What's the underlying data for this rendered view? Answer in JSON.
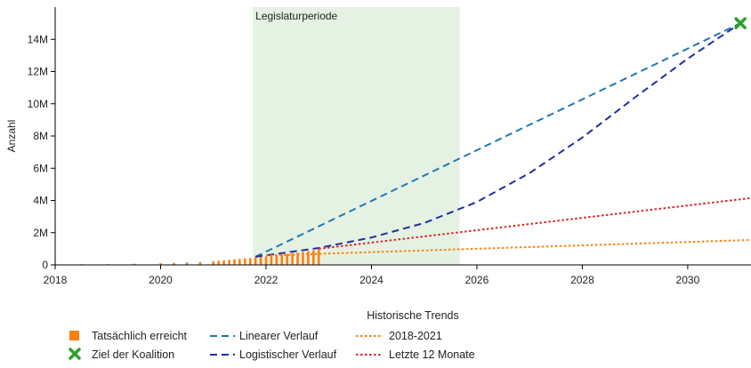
{
  "chart_data": {
    "type": "line",
    "ylabel": "Anzahl",
    "x_ticks": [
      2018,
      2020,
      2022,
      2024,
      2026,
      2028,
      2030
    ],
    "x_range": [
      2018,
      2031.2
    ],
    "y_ticks": [
      0,
      2000000,
      4000000,
      6000000,
      8000000,
      10000000,
      12000000,
      14000000
    ],
    "y_tick_labels": [
      "0",
      "2M",
      "4M",
      "6M",
      "8M",
      "10M",
      "12M",
      "14M"
    ],
    "y_range": [
      0,
      16000000
    ],
    "shaded_region": {
      "label": "Legislaturperiode",
      "x_start": 2021.75,
      "x_end": 2025.67,
      "color": "#e5f2e3"
    },
    "legend_header": "Historische Trends",
    "bars": {
      "name": "Tatsächlich erreicht",
      "color": "#ff7f0e",
      "x": [
        2018.0,
        2018.5,
        2019.0,
        2019.5,
        2020.0,
        2020.25,
        2020.5,
        2020.75,
        2021.0,
        2021.1,
        2021.2,
        2021.3,
        2021.4,
        2021.5,
        2021.6,
        2021.7,
        2021.8,
        2021.9,
        2022.0,
        2022.1,
        2022.2,
        2022.3,
        2022.4,
        2022.5,
        2022.6,
        2022.7,
        2022.8,
        2022.9,
        2023.0
      ],
      "values": [
        30000,
        40000,
        50000,
        70000,
        100000,
        120000,
        150000,
        180000,
        220000,
        250000,
        280000,
        310000,
        340000,
        370000,
        400000,
        430000,
        460000,
        490000,
        520000,
        560000,
        600000,
        640000,
        680000,
        720000,
        760000,
        800000,
        850000,
        900000,
        950000
      ]
    },
    "target": {
      "name": "Ziel der Koalition",
      "x": 2031,
      "y": 15000000,
      "color": "#2ca02c"
    },
    "series": [
      {
        "name": "Linearer Verlauf",
        "style": "dashed",
        "color": "#1f77b4",
        "x": [
          2021.8,
          2031
        ],
        "values": [
          500000,
          15000000
        ]
      },
      {
        "name": "Logistischer Verlauf",
        "style": "dashed",
        "color": "#1f2fa0",
        "x": [
          2021.8,
          2023,
          2024,
          2025,
          2026,
          2027,
          2028,
          2029,
          2030,
          2031
        ],
        "values": [
          500000,
          1050000,
          1700000,
          2600000,
          3900000,
          5700000,
          7900000,
          10400000,
          12800000,
          15000000
        ]
      },
      {
        "name": "2018-2021",
        "style": "dotted",
        "color": "#ff7f0e",
        "x": [
          2022,
          2031.2
        ],
        "values": [
          580000,
          1550000
        ]
      },
      {
        "name": "Letzte 12 Monate",
        "style": "dotted",
        "color": "#d62728",
        "x": [
          2023,
          2031.2
        ],
        "values": [
          1000000,
          4150000
        ]
      }
    ]
  }
}
